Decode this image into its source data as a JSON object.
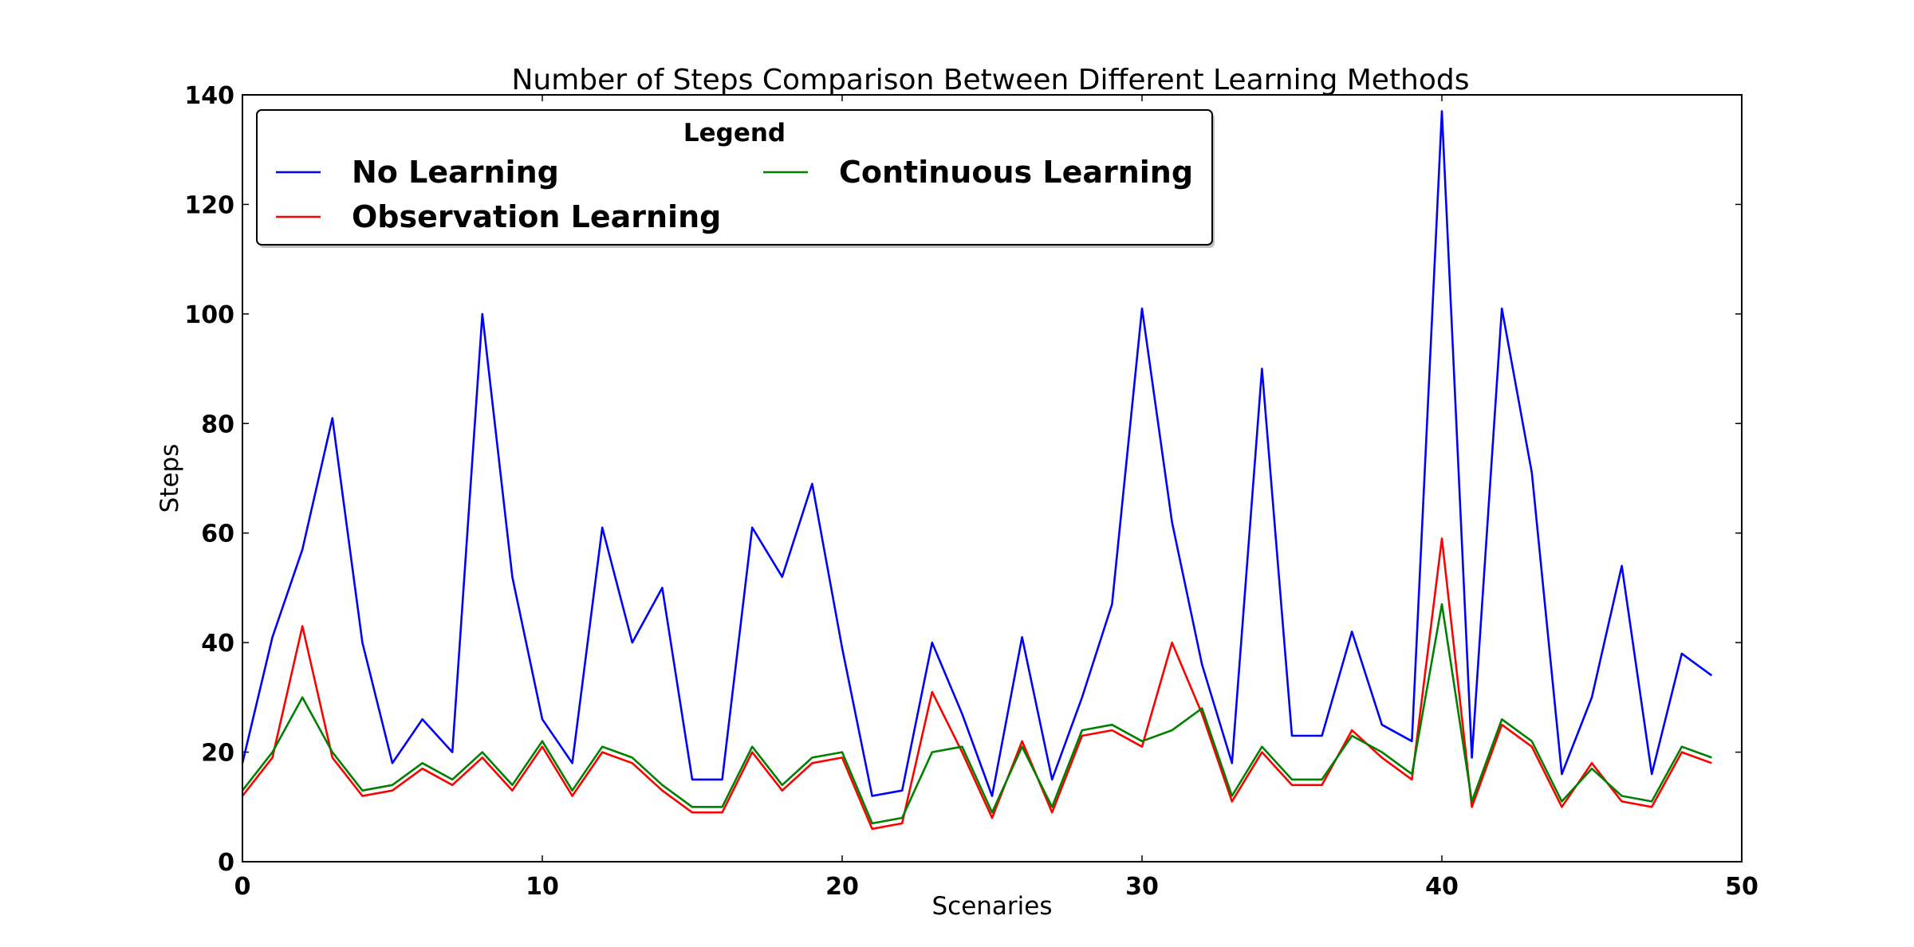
{
  "chart_data": {
    "type": "line",
    "title": "Number of Steps Comparison Between Different Learning Methods",
    "xlabel": "Scenaries",
    "ylabel": "Steps",
    "xlim": [
      0,
      50
    ],
    "ylim": [
      0,
      140
    ],
    "xticks": [
      0,
      10,
      20,
      30,
      40,
      50
    ],
    "yticks": [
      0,
      20,
      40,
      60,
      80,
      100,
      120,
      140
    ],
    "grid": false,
    "legend": {
      "title": "Legend",
      "placement": "top-left",
      "columns": 2
    },
    "x": [
      0,
      1,
      2,
      3,
      4,
      5,
      6,
      7,
      8,
      9,
      10,
      11,
      12,
      13,
      14,
      15,
      16,
      17,
      18,
      19,
      20,
      21,
      22,
      23,
      24,
      25,
      26,
      27,
      28,
      29,
      30,
      31,
      32,
      33,
      34,
      35,
      36,
      37,
      38,
      39,
      40,
      41,
      42,
      43,
      44,
      45,
      46,
      47,
      48,
      49
    ],
    "series": [
      {
        "name": "No Learning",
        "color": "#0000ff",
        "values": [
          18,
          41,
          57,
          81,
          40,
          18,
          26,
          20,
          100,
          52,
          26,
          18,
          61,
          40,
          50,
          15,
          15,
          61,
          52,
          69,
          39,
          12,
          13,
          40,
          27,
          12,
          41,
          15,
          30,
          47,
          101,
          62,
          36,
          18,
          90,
          23,
          23,
          42,
          25,
          22,
          137,
          19,
          101,
          71,
          16,
          30,
          54,
          16,
          38,
          34
        ]
      },
      {
        "name": "Observation Learning",
        "color": "#ff0000",
        "values": [
          12,
          19,
          43,
          19,
          12,
          13,
          17,
          14,
          19,
          13,
          21,
          12,
          20,
          18,
          13,
          9,
          9,
          20,
          13,
          18,
          19,
          6,
          7,
          31,
          20,
          8,
          22,
          9,
          23,
          24,
          21,
          40,
          27,
          11,
          20,
          14,
          14,
          24,
          19,
          15,
          59,
          10,
          25,
          21,
          10,
          18,
          11,
          10,
          20,
          18
        ]
      },
      {
        "name": "Continuous Learning",
        "color": "#008000",
        "values": [
          13,
          20,
          30,
          20,
          13,
          14,
          18,
          15,
          20,
          14,
          22,
          13,
          21,
          19,
          14,
          10,
          10,
          21,
          14,
          19,
          20,
          7,
          8,
          20,
          21,
          9,
          21,
          10,
          24,
          25,
          22,
          24,
          28,
          12,
          21,
          15,
          15,
          23,
          20,
          16,
          47,
          11,
          26,
          22,
          11,
          17,
          12,
          11,
          21,
          19
        ]
      }
    ]
  }
}
